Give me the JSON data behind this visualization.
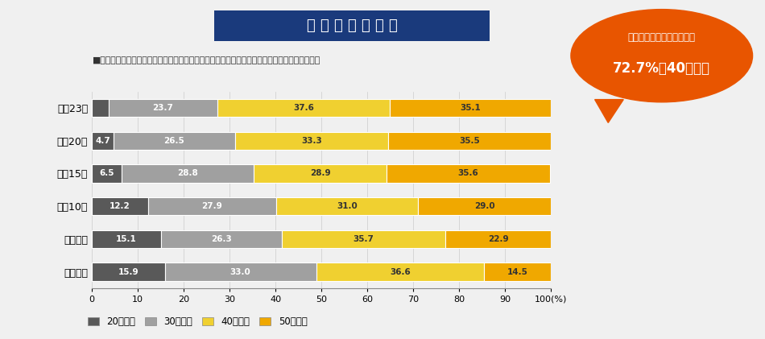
{
  "title": "人 員 不 足 の 要 因",
  "subtitle": "■トラックドライバーの年齢構成比の推移（出典：公益社団法人全日本トラック協会作成資料）",
  "callout_line1": "大型トラックドライバーの",
  "callout_line2": "72.7%が40歳以上",
  "years": [
    "平成元年",
    "平成５年",
    "平成10年",
    "平成15年",
    "平成20年",
    "平成23年"
  ],
  "categories": [
    "20歳以上",
    "30歳以上",
    "40歳以上",
    "50歳以上"
  ],
  "data": {
    "20歳以上": [
      15.9,
      15.1,
      12.2,
      6.5,
      4.7,
      3.6
    ],
    "30歳以上": [
      33.0,
      26.3,
      27.9,
      28.8,
      26.5,
      23.7
    ],
    "40歳以上": [
      36.6,
      35.7,
      31.0,
      28.9,
      33.3,
      37.6
    ],
    "50歳以上": [
      14.5,
      22.9,
      29.0,
      35.6,
      35.5,
      35.1
    ]
  },
  "colors": {
    "20歳以上": "#595959",
    "30歳以上": "#a0a0a0",
    "40歳以上": "#f0d030",
    "50歳以上": "#f0a800"
  },
  "text_colors": {
    "20歳以上": "#ffffff",
    "30歳以上": "#ffffff",
    "40歳以上": "#333333",
    "50歳以上": "#333333"
  },
  "background_color": "#f0f0f0",
  "title_bg_color": "#1a3a7c",
  "title_text_color": "#ffffff",
  "callout_bg_color": "#e85500",
  "callout_text_color": "#ffffff"
}
